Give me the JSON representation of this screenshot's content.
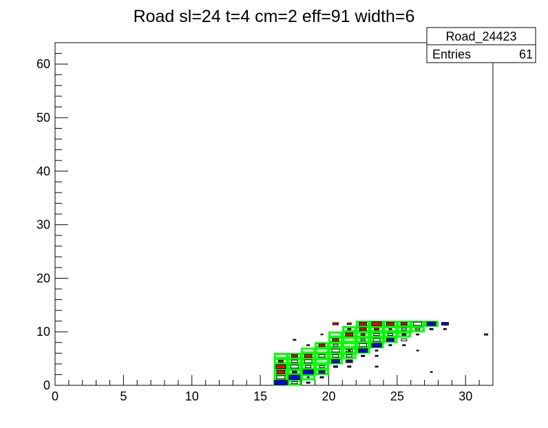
{
  "chart_data": {
    "type": "heatmap",
    "title": "Road sl=24 t=4 cm=2 eff=91 width=6",
    "xlabel": "",
    "ylabel": "",
    "xlim": [
      0,
      32
    ],
    "ylim": [
      0,
      64
    ],
    "bin_width_x": 1,
    "bin_height_y": 1,
    "x_ticks": [
      0,
      5,
      10,
      15,
      20,
      25,
      30
    ],
    "y_ticks": [
      0,
      10,
      20,
      30,
      40,
      50,
      60
    ],
    "stats": {
      "name": "Road_24423",
      "entries_label": "Entries",
      "entries_value": "61"
    },
    "colors": {
      "red": "#ff0000",
      "blue": "#0000ff",
      "navy": "#000080",
      "outline": "#000000",
      "road": "#00ff00"
    },
    "series": [
      {
        "color": "red",
        "boxes": [
          [
            16,
            4,
            0.35
          ],
          [
            16,
            3,
            0.7
          ],
          [
            16,
            2,
            0.6
          ],
          [
            16,
            1,
            0.25
          ],
          [
            17,
            5,
            0.45
          ],
          [
            17,
            8,
            0.2
          ],
          [
            18,
            5,
            0.55
          ],
          [
            18,
            7,
            0.2
          ],
          [
            19,
            7,
            0.45
          ],
          [
            19,
            9,
            0.15
          ],
          [
            20,
            8,
            0.45
          ],
          [
            20,
            11,
            0.4
          ],
          [
            21,
            9,
            0.55
          ],
          [
            21,
            10,
            0.25
          ],
          [
            21,
            11,
            0.3
          ],
          [
            22,
            9,
            0.3
          ],
          [
            22,
            10,
            0.5
          ],
          [
            22,
            11,
            0.55
          ],
          [
            23,
            11,
            0.7
          ],
          [
            23,
            10,
            0.35
          ],
          [
            23,
            6,
            0.2
          ],
          [
            24,
            11,
            0.55
          ],
          [
            24,
            10,
            0.2
          ],
          [
            25,
            11,
            0.45
          ],
          [
            31,
            9,
            0.25
          ]
        ]
      },
      {
        "color": "outline",
        "boxes": [
          [
            16,
            1,
            0.6
          ],
          [
            17,
            4,
            0.45
          ],
          [
            17,
            3,
            0.55
          ],
          [
            17,
            0,
            0.4
          ],
          [
            18,
            3,
            0.4
          ],
          [
            18,
            4,
            0.55
          ],
          [
            18,
            1,
            0.15
          ],
          [
            19,
            5,
            0.45
          ],
          [
            19,
            3,
            0.35
          ],
          [
            20,
            4,
            0.3
          ],
          [
            20,
            6,
            0.55
          ],
          [
            20,
            7,
            0.35
          ],
          [
            20,
            5,
            0.45
          ],
          [
            21,
            6,
            0.45
          ],
          [
            21,
            5,
            0.4
          ],
          [
            21,
            4,
            0.5
          ],
          [
            22,
            6,
            0.45
          ],
          [
            22,
            7,
            0.55
          ],
          [
            22,
            8,
            0.3
          ],
          [
            23,
            7,
            0.35
          ],
          [
            23,
            8,
            0.5
          ],
          [
            23,
            9,
            0.4
          ],
          [
            24,
            9,
            0.35
          ],
          [
            24,
            8,
            0.4
          ],
          [
            25,
            10,
            0.35
          ],
          [
            25,
            9,
            0.3
          ],
          [
            25,
            8,
            0.4
          ],
          [
            26,
            11,
            0.6
          ],
          [
            26,
            10,
            0.3
          ],
          [
            27,
            11,
            0.4
          ],
          [
            28,
            10,
            0.15
          ]
        ]
      },
      {
        "color": "blue",
        "boxes": [
          [
            16,
            0,
            0.85
          ],
          [
            17,
            1,
            0.8
          ],
          [
            18,
            2,
            0.75
          ],
          [
            19,
            2,
            0.45
          ],
          [
            20,
            4,
            0.6
          ],
          [
            21,
            4,
            0.35
          ],
          [
            21,
            6,
            0.15
          ],
          [
            22,
            6,
            0.65
          ],
          [
            23,
            7,
            0.7
          ],
          [
            23,
            3,
            0.2
          ],
          [
            24,
            8,
            0.55
          ],
          [
            24,
            7,
            0.2
          ],
          [
            25,
            9,
            0.2
          ],
          [
            26,
            6,
            0.15
          ],
          [
            27,
            2,
            0.15
          ],
          [
            27,
            11,
            0.65
          ],
          [
            28,
            11,
            0.5
          ]
        ]
      },
      {
        "color": "navy",
        "boxes": [
          [
            17,
            2,
            0.35
          ],
          [
            18,
            0,
            0.25
          ],
          [
            19,
            1,
            0.25
          ],
          [
            20,
            3,
            0.3
          ],
          [
            21,
            3,
            0.25
          ],
          [
            22,
            5,
            0.25
          ],
          [
            23,
            5,
            0.2
          ],
          [
            24,
            7,
            0.2
          ],
          [
            25,
            7,
            0.2
          ],
          [
            26,
            9,
            0.2
          ],
          [
            27,
            10,
            0.25
          ],
          [
            28,
            10,
            0.2
          ]
        ]
      }
    ],
    "road_cells": [
      [
        16,
        0
      ],
      [
        16,
        1
      ],
      [
        16,
        2
      ],
      [
        16,
        3
      ],
      [
        16,
        4
      ],
      [
        16,
        5
      ],
      [
        17,
        0
      ],
      [
        17,
        1
      ],
      [
        17,
        2
      ],
      [
        17,
        3
      ],
      [
        17,
        4
      ],
      [
        17,
        5
      ],
      [
        18,
        1
      ],
      [
        18,
        2
      ],
      [
        18,
        3
      ],
      [
        18,
        4
      ],
      [
        18,
        5
      ],
      [
        18,
        6
      ],
      [
        19,
        2
      ],
      [
        19,
        3
      ],
      [
        19,
        4
      ],
      [
        19,
        5
      ],
      [
        19,
        6
      ],
      [
        19,
        7
      ],
      [
        20,
        4
      ],
      [
        20,
        5
      ],
      [
        20,
        6
      ],
      [
        20,
        7
      ],
      [
        20,
        8
      ],
      [
        20,
        9
      ],
      [
        21,
        5
      ],
      [
        21,
        6
      ],
      [
        21,
        7
      ],
      [
        21,
        8
      ],
      [
        21,
        9
      ],
      [
        21,
        10
      ],
      [
        22,
        6
      ],
      [
        22,
        7
      ],
      [
        22,
        8
      ],
      [
        22,
        9
      ],
      [
        22,
        10
      ],
      [
        22,
        11
      ],
      [
        23,
        7
      ],
      [
        23,
        8
      ],
      [
        23,
        9
      ],
      [
        23,
        10
      ],
      [
        23,
        11
      ],
      [
        24,
        8
      ],
      [
        24,
        9
      ],
      [
        24,
        10
      ],
      [
        24,
        11
      ],
      [
        25,
        9
      ],
      [
        25,
        10
      ],
      [
        25,
        11
      ],
      [
        26,
        10
      ],
      [
        26,
        11
      ],
      [
        27,
        11
      ]
    ]
  }
}
